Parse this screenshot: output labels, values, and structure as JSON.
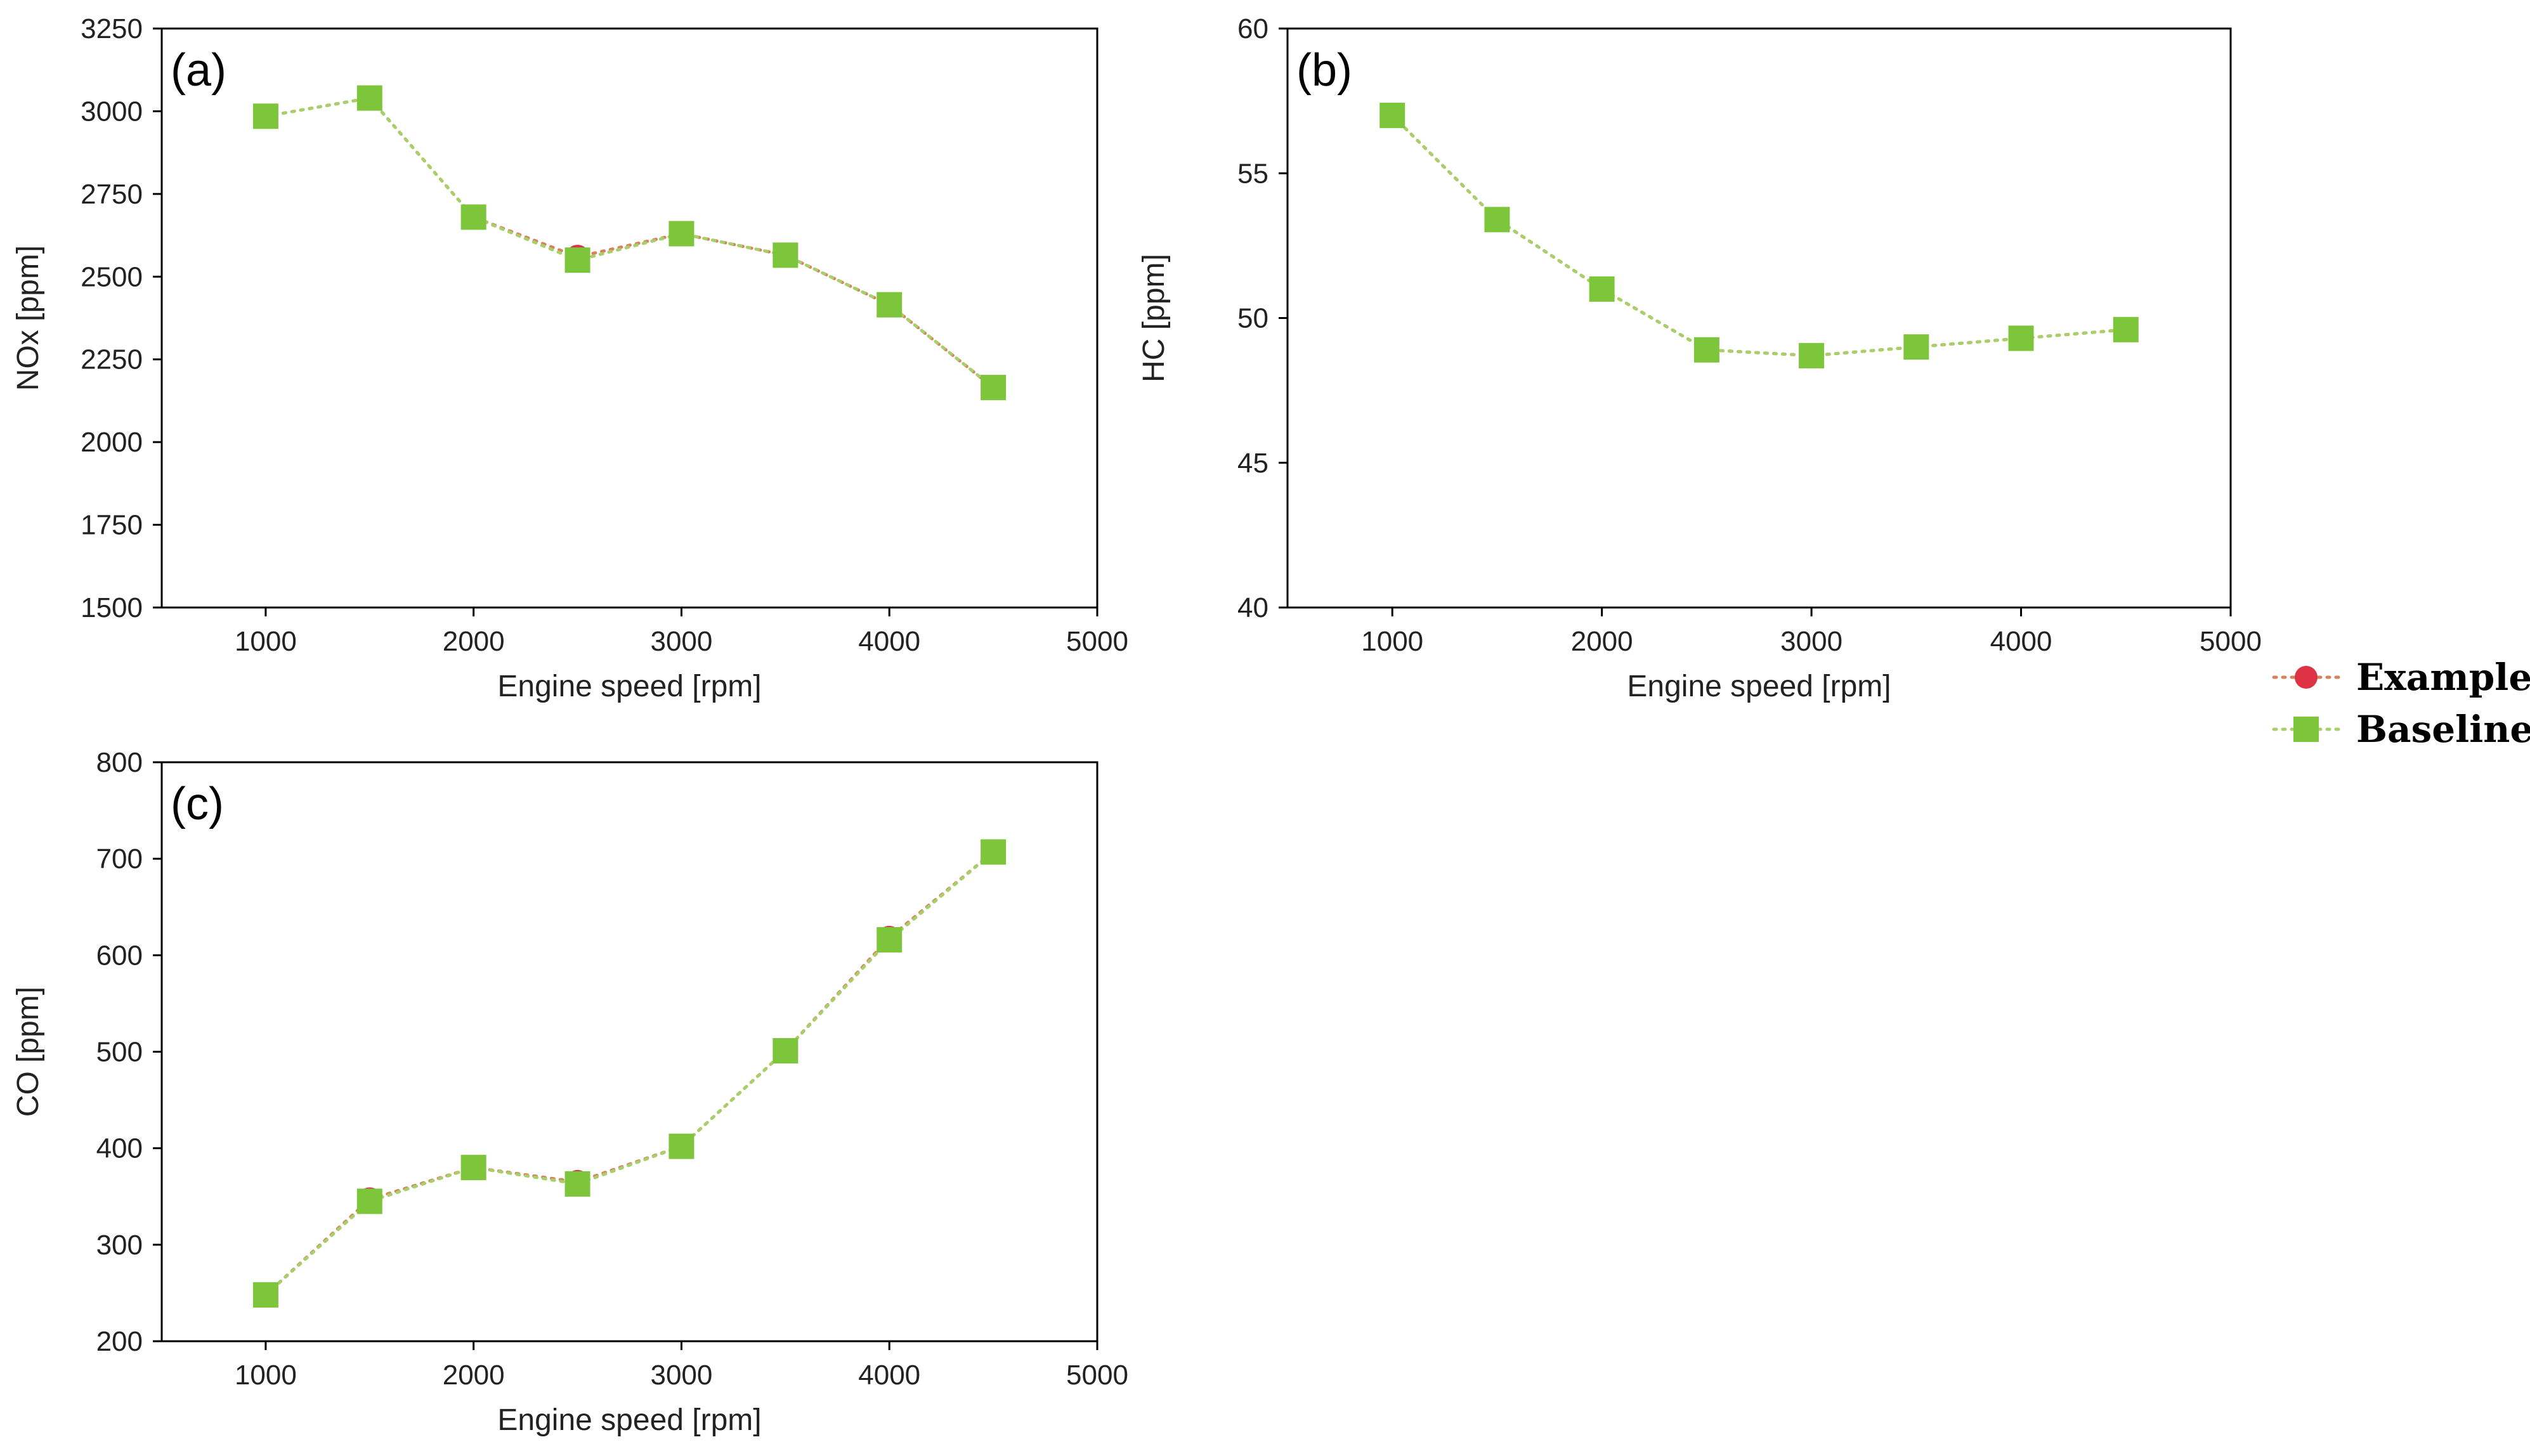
{
  "colors": {
    "example": "#dd3344",
    "baseline": "#7dc63c",
    "example_line": "#d9825a",
    "baseline_line": "#a8cf6a",
    "axis": "#000000"
  },
  "legend": {
    "entries": [
      {
        "name": "Example",
        "marker": "circle",
        "color_key": "example"
      },
      {
        "name": "Baseline",
        "marker": "square",
        "color_key": "baseline"
      }
    ]
  },
  "chart_data": [
    {
      "type": "line",
      "panel": "(a)",
      "xlabel": "Engine speed [rpm]",
      "ylabel": "NOx [ppm]",
      "xlim": [
        500,
        5000
      ],
      "ylim": [
        1500,
        3250
      ],
      "xticks": [
        1000,
        2000,
        3000,
        4000,
        5000
      ],
      "yticks": [
        1500,
        1750,
        2000,
        2250,
        2500,
        2750,
        3000,
        3250
      ],
      "x": [
        1000,
        1500,
        2000,
        2500,
        3000,
        3500,
        4000,
        4500
      ],
      "series": [
        {
          "name": "Example",
          "values": [
            2985,
            3040,
            2680,
            2560,
            2630,
            2565,
            2415,
            2165
          ]
        },
        {
          "name": "Baseline",
          "values": [
            2985,
            3040,
            2680,
            2550,
            2630,
            2565,
            2415,
            2165
          ]
        }
      ]
    },
    {
      "type": "line",
      "panel": "(b)",
      "xlabel": "Engine speed [rpm]",
      "ylabel": "HC [ppm]",
      "xlim": [
        500,
        5000
      ],
      "ylim": [
        40,
        60
      ],
      "xticks": [
        1000,
        2000,
        3000,
        4000,
        5000
      ],
      "yticks": [
        40,
        45,
        50,
        55,
        60
      ],
      "x": [
        1000,
        1500,
        2000,
        2500,
        3000,
        3500,
        4000,
        4500
      ],
      "series": [
        {
          "name": "Example",
          "values": [
            57.0,
            53.4,
            51.0,
            48.9,
            48.7,
            49.0,
            49.3,
            49.6
          ]
        },
        {
          "name": "Baseline",
          "values": [
            57.0,
            53.4,
            51.0,
            48.9,
            48.7,
            49.0,
            49.3,
            49.6
          ]
        }
      ]
    },
    {
      "type": "line",
      "panel": "(c)",
      "xlabel": "Engine speed [rpm]",
      "ylabel": "CO [ppm]",
      "xlim": [
        500,
        5000
      ],
      "ylim": [
        200,
        800
      ],
      "xticks": [
        1000,
        2000,
        3000,
        4000,
        5000
      ],
      "yticks": [
        200,
        300,
        400,
        500,
        600,
        700,
        800
      ],
      "x": [
        1000,
        1500,
        2000,
        2500,
        3000,
        3500,
        4000,
        4500
      ],
      "series": [
        {
          "name": "Example",
          "values": [
            248,
            347,
            380,
            365,
            402,
            501,
            618,
            707
          ]
        },
        {
          "name": "Baseline",
          "values": [
            248,
            345,
            380,
            363,
            402,
            501,
            616,
            707
          ]
        }
      ]
    }
  ]
}
